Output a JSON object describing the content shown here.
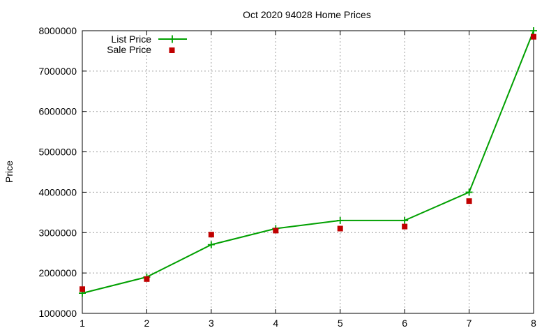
{
  "chart_data": {
    "type": "line",
    "title": "Oct 2020 94028 Home Prices",
    "xlabel": "",
    "ylabel": "Price",
    "x": [
      1,
      2,
      3,
      4,
      5,
      6,
      7,
      8
    ],
    "xlim": [
      1,
      8
    ],
    "ylim": [
      1000000,
      8000000
    ],
    "xticks": [
      "1",
      "2",
      "3",
      "4",
      "5",
      "6",
      "7",
      "8"
    ],
    "yticks": [
      "1000000",
      "2000000",
      "3000000",
      "4000000",
      "5000000",
      "6000000",
      "7000000",
      "8000000"
    ],
    "grid": true,
    "legend_position": "top-left",
    "series": [
      {
        "name": "List Price",
        "style": "line+plus-markers",
        "color": "#00a000",
        "values": [
          1500000,
          1900000,
          2700000,
          3100000,
          3300000,
          3300000,
          4000000,
          8000000
        ]
      },
      {
        "name": "Sale Price",
        "style": "square-markers",
        "color": "#c00000",
        "values": [
          1600000,
          1850000,
          2950000,
          3050000,
          3100000,
          3150000,
          3780000,
          7850000
        ]
      }
    ]
  }
}
